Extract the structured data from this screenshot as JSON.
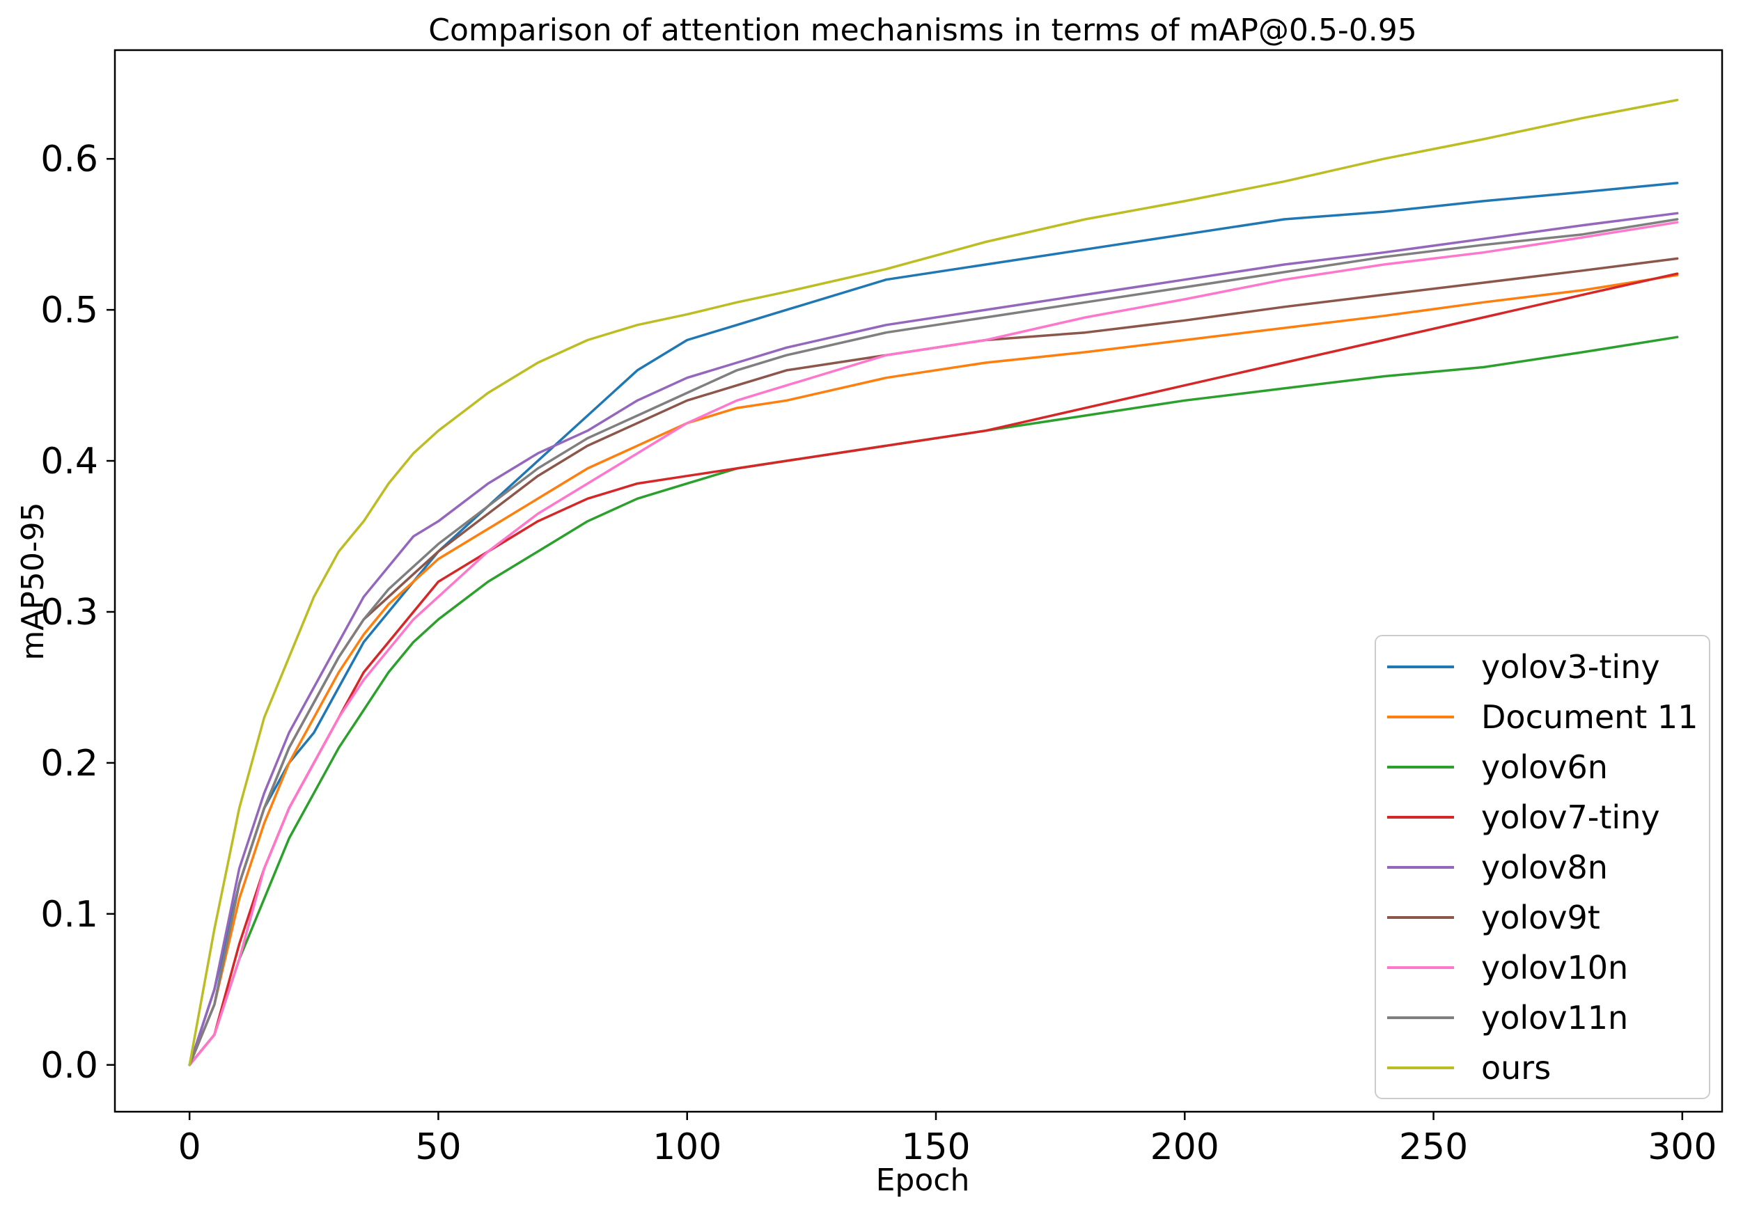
{
  "chart_data": {
    "type": "line",
    "title": "Comparison of attention mechanisms in terms of mAP@0.5-0.95",
    "xlabel": "Epoch",
    "ylabel": "mAP50-95",
    "xlim": [
      -15,
      308
    ],
    "ylim": [
      -0.031,
      0.672
    ],
    "xticks": [
      {
        "value": 0,
        "label": "0"
      },
      {
        "value": 50,
        "label": "50"
      },
      {
        "value": 100,
        "label": "100"
      },
      {
        "value": 150,
        "label": "150"
      },
      {
        "value": 200,
        "label": "200"
      },
      {
        "value": 250,
        "label": "250"
      },
      {
        "value": 300,
        "label": "300"
      }
    ],
    "yticks": [
      {
        "value": 0.0,
        "label": "0.0"
      },
      {
        "value": 0.1,
        "label": "0.1"
      },
      {
        "value": 0.2,
        "label": "0.2"
      },
      {
        "value": 0.3,
        "label": "0.3"
      },
      {
        "value": 0.4,
        "label": "0.4"
      },
      {
        "value": 0.5,
        "label": "0.5"
      },
      {
        "value": 0.6,
        "label": "0.6"
      }
    ],
    "grid": false,
    "legend_position": "lower-right",
    "series": [
      {
        "name": "yolov3-tiny",
        "color": "#1f77b4",
        "x": [
          0,
          5,
          10,
          15,
          20,
          25,
          30,
          35,
          40,
          45,
          50,
          60,
          70,
          80,
          90,
          100,
          110,
          120,
          140,
          160,
          180,
          200,
          220,
          240,
          260,
          280,
          299
        ],
        "y": [
          0,
          0.05,
          0.12,
          0.17,
          0.2,
          0.22,
          0.25,
          0.28,
          0.3,
          0.32,
          0.34,
          0.37,
          0.4,
          0.43,
          0.46,
          0.48,
          0.49,
          0.5,
          0.52,
          0.53,
          0.54,
          0.55,
          0.56,
          0.565,
          0.572,
          0.578,
          0.584
        ]
      },
      {
        "name": "Document 11",
        "color": "#ff7f0e",
        "x": [
          0,
          5,
          10,
          15,
          20,
          25,
          30,
          35,
          40,
          45,
          50,
          60,
          70,
          80,
          90,
          100,
          110,
          120,
          140,
          160,
          180,
          200,
          220,
          240,
          260,
          280,
          299
        ],
        "y": [
          0,
          0.04,
          0.11,
          0.16,
          0.2,
          0.23,
          0.26,
          0.285,
          0.305,
          0.32,
          0.335,
          0.355,
          0.375,
          0.395,
          0.41,
          0.425,
          0.435,
          0.44,
          0.455,
          0.465,
          0.472,
          0.48,
          0.488,
          0.496,
          0.505,
          0.513,
          0.523
        ]
      },
      {
        "name": "yolov6n",
        "color": "#2ca02c",
        "x": [
          0,
          5,
          10,
          15,
          20,
          25,
          30,
          35,
          40,
          45,
          50,
          60,
          70,
          80,
          90,
          100,
          110,
          120,
          140,
          160,
          180,
          200,
          220,
          240,
          260,
          280,
          299
        ],
        "y": [
          0,
          0.02,
          0.07,
          0.11,
          0.15,
          0.18,
          0.21,
          0.235,
          0.26,
          0.28,
          0.295,
          0.32,
          0.34,
          0.36,
          0.375,
          0.385,
          0.395,
          0.4,
          0.41,
          0.42,
          0.43,
          0.44,
          0.448,
          0.456,
          0.462,
          0.472,
          0.482
        ]
      },
      {
        "name": "yolov7-tiny",
        "color": "#d62728",
        "x": [
          0,
          5,
          10,
          15,
          20,
          25,
          30,
          35,
          40,
          45,
          50,
          60,
          70,
          80,
          90,
          100,
          110,
          120,
          140,
          160,
          180,
          200,
          220,
          240,
          260,
          280,
          299
        ],
        "y": [
          0,
          0.02,
          0.08,
          0.13,
          0.17,
          0.2,
          0.23,
          0.26,
          0.28,
          0.3,
          0.32,
          0.34,
          0.36,
          0.375,
          0.385,
          0.39,
          0.395,
          0.4,
          0.41,
          0.42,
          0.435,
          0.45,
          0.465,
          0.48,
          0.495,
          0.51,
          0.524
        ]
      },
      {
        "name": "yolov8n",
        "color": "#9467bd",
        "x": [
          0,
          5,
          10,
          15,
          20,
          25,
          30,
          35,
          40,
          45,
          50,
          60,
          70,
          80,
          90,
          100,
          110,
          120,
          140,
          160,
          180,
          200,
          220,
          240,
          260,
          280,
          299
        ],
        "y": [
          0,
          0.05,
          0.13,
          0.18,
          0.22,
          0.25,
          0.28,
          0.31,
          0.33,
          0.35,
          0.36,
          0.385,
          0.405,
          0.42,
          0.44,
          0.455,
          0.465,
          0.475,
          0.49,
          0.5,
          0.51,
          0.52,
          0.53,
          0.538,
          0.547,
          0.556,
          0.564
        ]
      },
      {
        "name": "yolov9t",
        "color": "#8c564b",
        "x": [
          0,
          5,
          10,
          15,
          20,
          25,
          30,
          35,
          40,
          45,
          50,
          60,
          70,
          80,
          90,
          100,
          110,
          120,
          140,
          160,
          180,
          200,
          220,
          240,
          260,
          280,
          299
        ],
        "y": [
          0,
          0.04,
          0.12,
          0.17,
          0.21,
          0.24,
          0.27,
          0.295,
          0.31,
          0.325,
          0.34,
          0.365,
          0.39,
          0.41,
          0.425,
          0.44,
          0.45,
          0.46,
          0.47,
          0.48,
          0.485,
          0.493,
          0.502,
          0.51,
          0.518,
          0.526,
          0.534
        ]
      },
      {
        "name": "yolov10n",
        "color": "#ff77cc",
        "x": [
          0,
          5,
          10,
          15,
          20,
          25,
          30,
          35,
          40,
          45,
          50,
          60,
          70,
          80,
          90,
          100,
          110,
          120,
          140,
          160,
          180,
          200,
          220,
          240,
          260,
          280,
          299
        ],
        "y": [
          0,
          0.02,
          0.07,
          0.13,
          0.17,
          0.2,
          0.23,
          0.255,
          0.275,
          0.295,
          0.31,
          0.34,
          0.365,
          0.385,
          0.405,
          0.425,
          0.44,
          0.45,
          0.47,
          0.48,
          0.495,
          0.507,
          0.52,
          0.53,
          0.538,
          0.548,
          0.558
        ]
      },
      {
        "name": "yolov11n",
        "color": "#7f7f7f",
        "x": [
          0,
          5,
          10,
          15,
          20,
          25,
          30,
          35,
          40,
          45,
          50,
          60,
          70,
          80,
          90,
          100,
          110,
          120,
          140,
          160,
          180,
          200,
          220,
          240,
          260,
          280,
          299
        ],
        "y": [
          0,
          0.04,
          0.12,
          0.17,
          0.21,
          0.24,
          0.27,
          0.295,
          0.315,
          0.33,
          0.345,
          0.37,
          0.395,
          0.415,
          0.43,
          0.445,
          0.46,
          0.47,
          0.485,
          0.495,
          0.505,
          0.515,
          0.525,
          0.535,
          0.543,
          0.55,
          0.56
        ]
      },
      {
        "name": "ours",
        "color": "#bcbd22",
        "x": [
          0,
          5,
          10,
          15,
          20,
          25,
          30,
          35,
          40,
          45,
          50,
          60,
          70,
          80,
          90,
          100,
          110,
          120,
          140,
          160,
          180,
          200,
          220,
          240,
          260,
          280,
          299
        ],
        "y": [
          0,
          0.09,
          0.17,
          0.23,
          0.27,
          0.31,
          0.34,
          0.36,
          0.385,
          0.405,
          0.42,
          0.445,
          0.465,
          0.48,
          0.49,
          0.497,
          0.505,
          0.512,
          0.527,
          0.545,
          0.56,
          0.572,
          0.585,
          0.6,
          0.613,
          0.627,
          0.639
        ]
      }
    ]
  }
}
